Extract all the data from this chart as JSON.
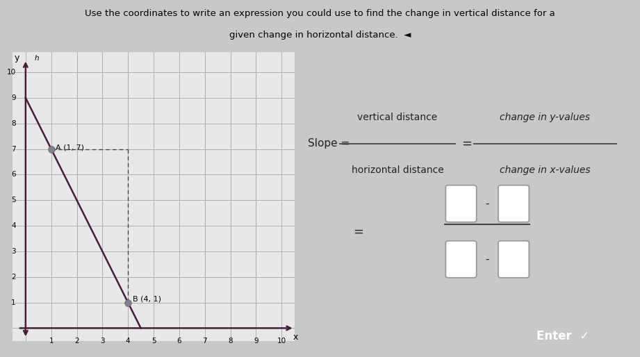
{
  "title_line1": "Use the coordinates to write an expression you could use to find the change in vertical distance for a",
  "title_line2": "given change in horizontal distance.  ◄︎",
  "bg_color": "#c8c8c8",
  "graph_bg": "#e8e8e8",
  "point_A": [
    1,
    7
  ],
  "point_B": [
    4,
    1
  ],
  "line_color": "#4a1a3a",
  "point_color": "#808090",
  "dashed_color": "#444444",
  "axis_color": "#4a1a3a",
  "grid_color": "#b0b0b0",
  "xlim": [
    0,
    10
  ],
  "ylim": [
    0,
    10
  ],
  "slope_text_color": "#222222",
  "box_color": "#999999",
  "fraction_line_color": "#444444",
  "enter_bg": "#5555aa",
  "enter_text": "Enter  ✓"
}
